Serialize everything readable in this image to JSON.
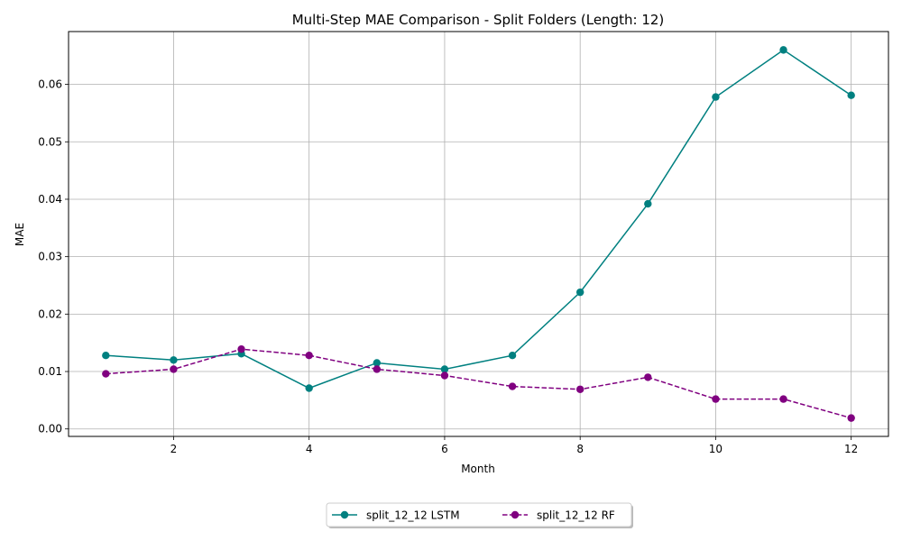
{
  "chart_data": {
    "type": "line",
    "title": "Multi-Step MAE Comparison - Split Folders (Length: 12)",
    "xlabel": "Month",
    "ylabel": "MAE",
    "xlim": [
      0.45,
      12.55
    ],
    "ylim": [
      -0.0013,
      0.0692
    ],
    "x_ticks": [
      2,
      4,
      6,
      8,
      10,
      12
    ],
    "y_ticks": [
      0.0,
      0.01,
      0.02,
      0.03,
      0.04,
      0.05,
      0.06
    ],
    "y_tick_labels": [
      "0.00",
      "0.01",
      "0.02",
      "0.03",
      "0.04",
      "0.05",
      "0.06"
    ],
    "grid": true,
    "legend_position": "bottom-center, below plot",
    "x": [
      1,
      2,
      3,
      4,
      5,
      6,
      7,
      8,
      9,
      10,
      11,
      12
    ],
    "series": [
      {
        "name": "split_12_12 LSTM",
        "color": "#008080",
        "line_style": "solid",
        "marker": "circle",
        "values": [
          0.0128,
          0.012,
          0.0131,
          0.0071,
          0.0115,
          0.0104,
          0.0128,
          0.0238,
          0.0392,
          0.0578,
          0.066,
          0.0581
        ]
      },
      {
        "name": "split_12_12 RF",
        "color": "#800080",
        "line_style": "dashed",
        "marker": "circle",
        "values": [
          0.0096,
          0.0104,
          0.0139,
          0.0128,
          0.0104,
          0.0093,
          0.0074,
          0.0069,
          0.009,
          0.0052,
          0.0052,
          0.0019
        ]
      }
    ]
  }
}
